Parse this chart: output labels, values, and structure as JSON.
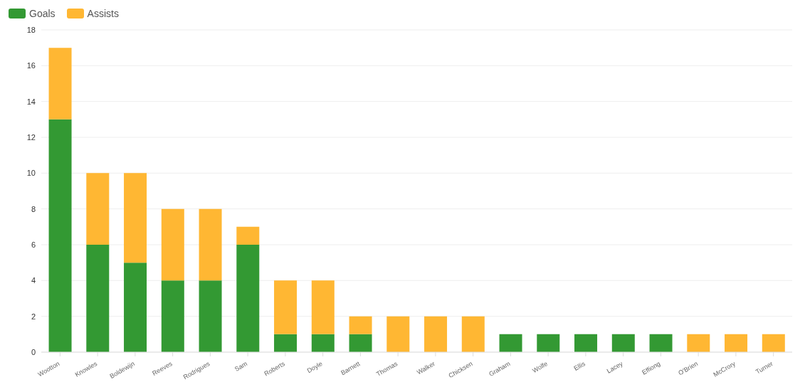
{
  "chart_data": {
    "type": "bar",
    "stacked": true,
    "categories": [
      "Wootton",
      "Knowles",
      "Boldewijn",
      "Reeves",
      "Rodrigues",
      "Sam",
      "Roberts",
      "Doyle",
      "Barnett",
      "Thomas",
      "Walker",
      "Chicksen",
      "Graham",
      "Wolfe",
      "Ellis",
      "Lacey",
      "Effiong",
      "O'Brien",
      "McCrory",
      "Turner"
    ],
    "series": [
      {
        "name": "Goals",
        "color": "#339933",
        "values": [
          13,
          6,
          5,
          4,
          4,
          6,
          1,
          1,
          1,
          0,
          0,
          0,
          1,
          1,
          1,
          1,
          1,
          0,
          0,
          0
        ]
      },
      {
        "name": "Assists",
        "color": "#ffb733",
        "values": [
          4,
          4,
          5,
          4,
          4,
          1,
          3,
          3,
          1,
          2,
          2,
          2,
          0,
          0,
          0,
          0,
          0,
          1,
          1,
          1
        ]
      }
    ],
    "ylim": [
      0,
      18
    ],
    "yticks": [
      0,
      2,
      4,
      6,
      8,
      10,
      12,
      14,
      16,
      18
    ],
    "grid": "y",
    "legend": "top left"
  }
}
